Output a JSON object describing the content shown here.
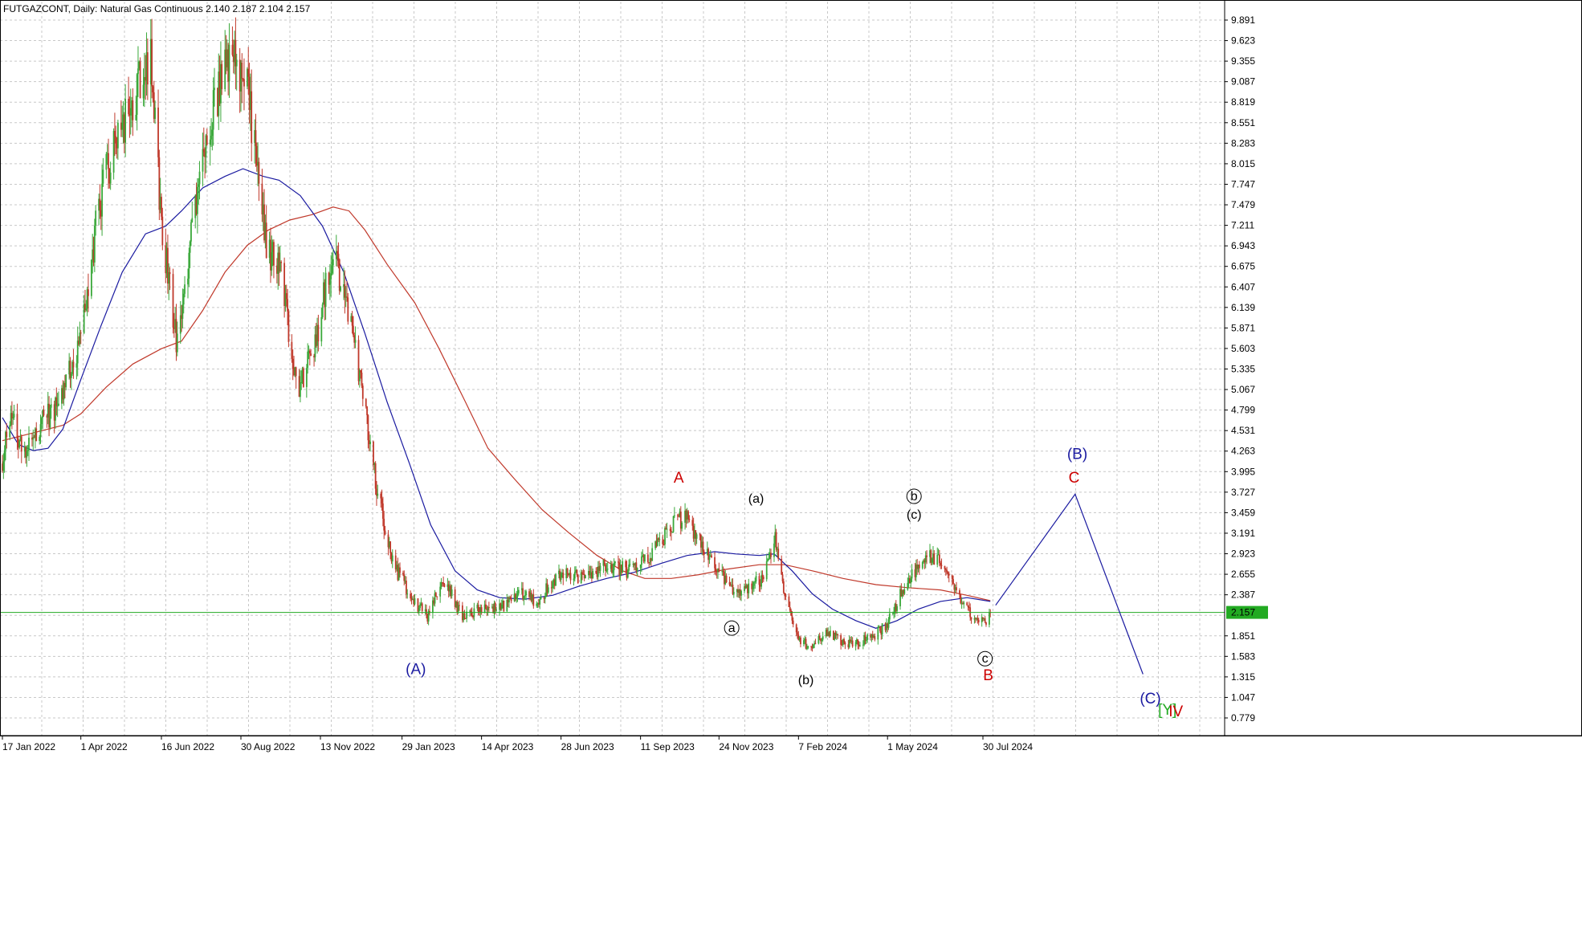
{
  "header": {
    "symbol": "FUTGAZCONT",
    "timeframe": "Daily:",
    "instrument": "Natural Gas Continuous",
    "ohlc": "2.140 2.187 2.104 2.157"
  },
  "chart_data": {
    "type": "candlestick",
    "title": "FUTGAZCONT, Daily: Natural Gas Continuous 2.140 2.187 2.104 2.157",
    "ylim": [
      0.6,
      10.02
    ],
    "x_range": [
      "2022-01-17",
      "2024-12-31"
    ],
    "grid": true,
    "bull_color": "#3aa83a",
    "bear_color": "#c0392b",
    "ma_fast_color": "#1a1aa0",
    "ma_slow_color": "#c0392b",
    "current_price": 2.157,
    "current_price_label": "2.157",
    "current_price_color": "#22aa22",
    "y_ticks": [
      9.891,
      9.623,
      9.355,
      9.087,
      8.819,
      8.551,
      8.283,
      8.015,
      7.747,
      7.479,
      7.211,
      6.943,
      6.675,
      6.407,
      6.139,
      5.871,
      5.603,
      5.335,
      5.067,
      4.799,
      4.531,
      4.263,
      3.995,
      3.727,
      3.459,
      3.191,
      2.923,
      2.655,
      2.387,
      1.851,
      1.583,
      1.315,
      1.047,
      0.779
    ],
    "y_tick_labels": [
      "9.891",
      "9.623",
      "9.355",
      "9.087",
      "8.819",
      "8.551",
      "8.283",
      "8.015",
      "7.747",
      "7.479",
      "7.211",
      "6.943",
      "6.675",
      "6.407",
      "6.139",
      "5.871",
      "5.603",
      "5.335",
      "5.067",
      "4.799",
      "4.531",
      "4.263",
      "3.995",
      "3.727",
      "3.459",
      "3.191",
      "2.923",
      "2.655",
      "2.387",
      "1.851",
      "1.583",
      "1.315",
      "1.047",
      "0.779"
    ],
    "x_ticks": [
      {
        "date": "2022-01-17",
        "label": "17 Jan 2022"
      },
      {
        "date": "2022-04-01",
        "label": "1 Apr 2022"
      },
      {
        "date": "2022-06-16",
        "label": "16 Jun 2022"
      },
      {
        "date": "2022-08-30",
        "label": "30 Aug 2022"
      },
      {
        "date": "2022-11-13",
        "label": "13 Nov 2022"
      },
      {
        "date": "2023-01-29",
        "label": "29 Jan 2023"
      },
      {
        "date": "2023-04-14",
        "label": "14 Apr 2023"
      },
      {
        "date": "2023-06-28",
        "label": "28 Jun 2023"
      },
      {
        "date": "2023-09-11",
        "label": "11 Sep 2023"
      },
      {
        "date": "2023-11-24",
        "label": "24 Nov 2023"
      },
      {
        "date": "2024-02-07",
        "label": "7 Feb 2024"
      },
      {
        "date": "2024-05-01",
        "label": "1 May 2024"
      },
      {
        "date": "2024-07-30",
        "label": "30 Jul 2024"
      }
    ],
    "price_path": [
      {
        "date": "2022-01-17",
        "price": 4.1
      },
      {
        "date": "2022-01-24",
        "price": 4.7
      },
      {
        "date": "2022-02-07",
        "price": 4.3
      },
      {
        "date": "2022-02-22",
        "price": 4.6
      },
      {
        "date": "2022-03-07",
        "price": 4.8
      },
      {
        "date": "2022-04-01",
        "price": 5.7
      },
      {
        "date": "2022-04-18",
        "price": 7.5
      },
      {
        "date": "2022-05-06",
        "price": 8.4
      },
      {
        "date": "2022-05-23",
        "price": 9.0
      },
      {
        "date": "2022-06-06",
        "price": 9.3
      },
      {
        "date": "2022-06-16",
        "price": 7.2
      },
      {
        "date": "2022-07-01",
        "price": 5.6
      },
      {
        "date": "2022-07-15",
        "price": 7.2
      },
      {
        "date": "2022-08-01",
        "price": 8.6
      },
      {
        "date": "2022-08-22",
        "price": 9.6
      },
      {
        "date": "2022-09-05",
        "price": 9.0
      },
      {
        "date": "2022-09-23",
        "price": 7.0
      },
      {
        "date": "2022-10-07",
        "price": 6.5
      },
      {
        "date": "2022-10-24",
        "price": 5.0
      },
      {
        "date": "2022-11-13",
        "price": 6.0
      },
      {
        "date": "2022-11-25",
        "price": 7.0
      },
      {
        "date": "2022-12-10",
        "price": 6.0
      },
      {
        "date": "2022-12-20",
        "price": 5.2
      },
      {
        "date": "2023-01-05",
        "price": 3.8
      },
      {
        "date": "2023-01-20",
        "price": 2.8
      },
      {
        "date": "2023-02-10",
        "price": 2.3
      },
      {
        "date": "2023-02-22",
        "price": 2.1
      },
      {
        "date": "2023-03-08",
        "price": 2.6
      },
      {
        "date": "2023-03-28",
        "price": 2.1
      },
      {
        "date": "2023-04-14",
        "price": 2.2
      },
      {
        "date": "2023-05-01",
        "price": 2.2
      },
      {
        "date": "2023-05-20",
        "price": 2.4
      },
      {
        "date": "2023-06-05",
        "price": 2.3
      },
      {
        "date": "2023-06-28",
        "price": 2.7
      },
      {
        "date": "2023-07-20",
        "price": 2.6
      },
      {
        "date": "2023-08-10",
        "price": 2.8
      },
      {
        "date": "2023-09-01",
        "price": 2.7
      },
      {
        "date": "2023-09-20",
        "price": 2.9
      },
      {
        "date": "2023-10-10",
        "price": 3.3
      },
      {
        "date": "2023-10-25",
        "price": 3.4
      },
      {
        "date": "2023-11-08",
        "price": 3.0
      },
      {
        "date": "2023-11-24",
        "price": 2.7
      },
      {
        "date": "2023-12-12",
        "price": 2.4
      },
      {
        "date": "2024-01-05",
        "price": 2.6
      },
      {
        "date": "2024-01-16",
        "price": 3.1
      },
      {
        "date": "2024-01-25",
        "price": 2.4
      },
      {
        "date": "2024-02-07",
        "price": 1.8
      },
      {
        "date": "2024-02-20",
        "price": 1.7
      },
      {
        "date": "2024-03-05",
        "price": 1.9
      },
      {
        "date": "2024-03-25",
        "price": 1.75
      },
      {
        "date": "2024-04-12",
        "price": 1.8
      },
      {
        "date": "2024-05-01",
        "price": 2.0
      },
      {
        "date": "2024-05-20",
        "price": 2.6
      },
      {
        "date": "2024-06-08",
        "price": 2.9
      },
      {
        "date": "2024-06-20",
        "price": 2.8
      },
      {
        "date": "2024-07-05",
        "price": 2.4
      },
      {
        "date": "2024-07-20",
        "price": 2.1
      },
      {
        "date": "2024-08-01",
        "price": 2.0
      },
      {
        "date": "2024-08-06",
        "price": 2.157
      }
    ],
    "ma_fast": [
      {
        "date": "2022-01-17",
        "value": 4.7
      },
      {
        "date": "2022-02-01",
        "value": 4.35
      },
      {
        "date": "2022-02-15",
        "value": 4.27
      },
      {
        "date": "2022-03-01",
        "value": 4.3
      },
      {
        "date": "2022-03-15",
        "value": 4.55
      },
      {
        "date": "2022-04-01",
        "value": 5.2
      },
      {
        "date": "2022-04-20",
        "value": 5.9
      },
      {
        "date": "2022-05-10",
        "value": 6.6
      },
      {
        "date": "2022-06-01",
        "value": 7.1
      },
      {
        "date": "2022-06-20",
        "value": 7.2
      },
      {
        "date": "2022-07-05",
        "value": 7.4
      },
      {
        "date": "2022-07-25",
        "value": 7.7
      },
      {
        "date": "2022-08-15",
        "value": 7.85
      },
      {
        "date": "2022-09-01",
        "value": 7.95
      },
      {
        "date": "2022-09-20",
        "value": 7.85
      },
      {
        "date": "2022-10-05",
        "value": 7.8
      },
      {
        "date": "2022-10-25",
        "value": 7.6
      },
      {
        "date": "2022-11-15",
        "value": 7.2
      },
      {
        "date": "2022-12-05",
        "value": 6.6
      },
      {
        "date": "2022-12-25",
        "value": 5.8
      },
      {
        "date": "2023-01-15",
        "value": 4.9
      },
      {
        "date": "2023-02-05",
        "value": 4.1
      },
      {
        "date": "2023-02-25",
        "value": 3.3
      },
      {
        "date": "2023-03-20",
        "value": 2.7
      },
      {
        "date": "2023-04-10",
        "value": 2.45
      },
      {
        "date": "2023-05-01",
        "value": 2.35
      },
      {
        "date": "2023-05-25",
        "value": 2.33
      },
      {
        "date": "2023-06-20",
        "value": 2.38
      },
      {
        "date": "2023-07-15",
        "value": 2.5
      },
      {
        "date": "2023-08-10",
        "value": 2.6
      },
      {
        "date": "2023-09-05",
        "value": 2.68
      },
      {
        "date": "2023-10-01",
        "value": 2.8
      },
      {
        "date": "2023-10-25",
        "value": 2.9
      },
      {
        "date": "2023-11-20",
        "value": 2.95
      },
      {
        "date": "2023-12-10",
        "value": 2.92
      },
      {
        "date": "2024-01-01",
        "value": 2.9
      },
      {
        "date": "2024-01-15",
        "value": 2.92
      },
      {
        "date": "2024-02-01",
        "value": 2.7
      },
      {
        "date": "2024-02-20",
        "value": 2.4
      },
      {
        "date": "2024-03-10",
        "value": 2.2
      },
      {
        "date": "2024-04-01",
        "value": 2.05
      },
      {
        "date": "2024-04-20",
        "value": 1.95
      },
      {
        "date": "2024-05-10",
        "value": 2.05
      },
      {
        "date": "2024-05-30",
        "value": 2.2
      },
      {
        "date": "2024-06-20",
        "value": 2.3
      },
      {
        "date": "2024-07-15",
        "value": 2.35
      },
      {
        "date": "2024-08-06",
        "value": 2.3
      }
    ],
    "ma_slow": [
      {
        "date": "2022-01-17",
        "value": 4.4
      },
      {
        "date": "2022-02-15",
        "value": 4.5
      },
      {
        "date": "2022-03-15",
        "value": 4.6
      },
      {
        "date": "2022-04-01",
        "value": 4.75
      },
      {
        "date": "2022-04-25",
        "value": 5.1
      },
      {
        "date": "2022-05-20",
        "value": 5.4
      },
      {
        "date": "2022-06-16",
        "value": 5.6
      },
      {
        "date": "2022-07-05",
        "value": 5.7
      },
      {
        "date": "2022-07-25",
        "value": 6.1
      },
      {
        "date": "2022-08-15",
        "value": 6.6
      },
      {
        "date": "2022-09-05",
        "value": 6.95
      },
      {
        "date": "2022-09-25",
        "value": 7.15
      },
      {
        "date": "2022-10-15",
        "value": 7.28
      },
      {
        "date": "2022-11-05",
        "value": 7.35
      },
      {
        "date": "2022-11-25",
        "value": 7.45
      },
      {
        "date": "2022-12-10",
        "value": 7.4
      },
      {
        "date": "2022-12-25",
        "value": 7.15
      },
      {
        "date": "2023-01-15",
        "value": 6.7
      },
      {
        "date": "2023-02-10",
        "value": 6.2
      },
      {
        "date": "2023-03-05",
        "value": 5.6
      },
      {
        "date": "2023-03-30",
        "value": 4.9
      },
      {
        "date": "2023-04-20",
        "value": 4.3
      },
      {
        "date": "2023-05-15",
        "value": 3.9
      },
      {
        "date": "2023-06-10",
        "value": 3.5
      },
      {
        "date": "2023-07-05",
        "value": 3.2
      },
      {
        "date": "2023-08-01",
        "value": 2.9
      },
      {
        "date": "2023-08-25",
        "value": 2.7
      },
      {
        "date": "2023-09-15",
        "value": 2.6
      },
      {
        "date": "2023-10-10",
        "value": 2.6
      },
      {
        "date": "2023-11-05",
        "value": 2.65
      },
      {
        "date": "2023-12-01",
        "value": 2.72
      },
      {
        "date": "2024-01-01",
        "value": 2.78
      },
      {
        "date": "2024-01-25",
        "value": 2.78
      },
      {
        "date": "2024-02-20",
        "value": 2.7
      },
      {
        "date": "2024-03-20",
        "value": 2.6
      },
      {
        "date": "2024-04-20",
        "value": 2.52
      },
      {
        "date": "2024-05-20",
        "value": 2.48
      },
      {
        "date": "2024-06-20",
        "value": 2.45
      },
      {
        "date": "2024-07-15",
        "value": 2.38
      },
      {
        "date": "2024-08-06",
        "value": 2.31
      }
    ],
    "projection": [
      {
        "date": "2024-08-11",
        "price": 2.25
      },
      {
        "date": "2024-10-25",
        "price": 3.7
      },
      {
        "date": "2024-12-28",
        "price": 1.35
      }
    ],
    "annotations": [
      {
        "text": "(A)",
        "date": "2023-02-11",
        "price": 1.35,
        "color": "#1a1aa0",
        "style": "big"
      },
      {
        "text": "A",
        "date": "2023-10-17",
        "price": 3.85,
        "color": "#cc0000",
        "style": "big"
      },
      {
        "text": "(a)",
        "date": "2023-12-29",
        "price": 3.59,
        "color": "#000000",
        "style": "normal"
      },
      {
        "text": "a",
        "date": "2023-12-06",
        "price": 1.9,
        "color": "#000000",
        "style": "circle"
      },
      {
        "text": "(b)",
        "date": "2024-02-14",
        "price": 1.22,
        "color": "#000000",
        "style": "normal"
      },
      {
        "text": "b",
        "date": "2024-05-26",
        "price": 3.62,
        "color": "#000000",
        "style": "circle"
      },
      {
        "text": "(c)",
        "date": "2024-05-26",
        "price": 3.38,
        "color": "#000000",
        "style": "normal"
      },
      {
        "text": "c",
        "date": "2024-08-01",
        "price": 1.5,
        "color": "#000000",
        "style": "circle"
      },
      {
        "text": "B",
        "date": "2024-08-04",
        "price": 1.27,
        "color": "#cc0000",
        "style": "big"
      },
      {
        "text": "(B)",
        "date": "2024-10-27",
        "price": 4.16,
        "color": "#1a1aa0",
        "style": "big"
      },
      {
        "text": "C",
        "date": "2024-10-24",
        "price": 3.85,
        "color": "#cc0000",
        "style": "big"
      },
      {
        "text": "(C)",
        "date": "2025-01-04",
        "price": 0.97,
        "color": "#1a1aa0",
        "style": "big"
      },
      {
        "text": "[Y]",
        "date": "2025-01-20",
        "price": 0.82,
        "color": "#22aa22",
        "style": "big"
      },
      {
        "text": "IV",
        "date": "2025-01-28",
        "price": 0.8,
        "color": "#cc0000",
        "style": "big"
      }
    ]
  }
}
